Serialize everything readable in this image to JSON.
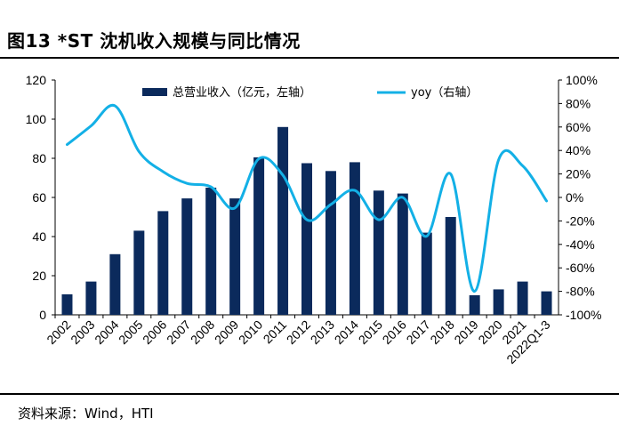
{
  "header": {
    "title": "图13 *ST 沈机收入规模与同比情况"
  },
  "footer": {
    "source": "资料来源：Wind，HTI"
  },
  "chart_data": {
    "type": "bar+line",
    "title": "图13 *ST 沈机收入规模与同比情况",
    "categories": [
      "2002",
      "2003",
      "2004",
      "2005",
      "2006",
      "2007",
      "2008",
      "2009",
      "2010",
      "2011",
      "2012",
      "2013",
      "2014",
      "2015",
      "2016",
      "2017",
      "2018",
      "2019",
      "2020",
      "2021",
      "2022Q1-3"
    ],
    "series": [
      {
        "name": "总营业收入（亿元，左轴）",
        "type": "bar",
        "axis": "left",
        "color": "#0b2a5c",
        "values": [
          10.5,
          17,
          31,
          43,
          53,
          59.5,
          65,
          59.5,
          80.5,
          96,
          77.5,
          73.5,
          78,
          63.5,
          62,
          42,
          50,
          10,
          13,
          17,
          12
        ]
      },
      {
        "name": "yoy（右轴）",
        "type": "line",
        "axis": "right",
        "color": "#13b0e6",
        "values": [
          45,
          61,
          78,
          39,
          22,
          12,
          9,
          -9,
          33,
          19,
          -19,
          -6,
          6,
          -19,
          0,
          -33,
          20,
          -80,
          32,
          27,
          -3
        ]
      }
    ],
    "y_left": {
      "min": 0,
      "max": 120,
      "step": 20,
      "ticks": [
        "0",
        "20",
        "40",
        "60",
        "80",
        "100",
        "120"
      ]
    },
    "y_right": {
      "min": -100,
      "max": 100,
      "step": 20,
      "ticks": [
        "-100%",
        "-80%",
        "-60%",
        "-40%",
        "-20%",
        "0%",
        "20%",
        "40%",
        "60%",
        "80%",
        "100%"
      ]
    },
    "legend": {
      "position": "top-center",
      "bar_label": "总营业收入（亿元，左轴）",
      "line_label": "yoy（右轴）"
    },
    "grid": false
  }
}
